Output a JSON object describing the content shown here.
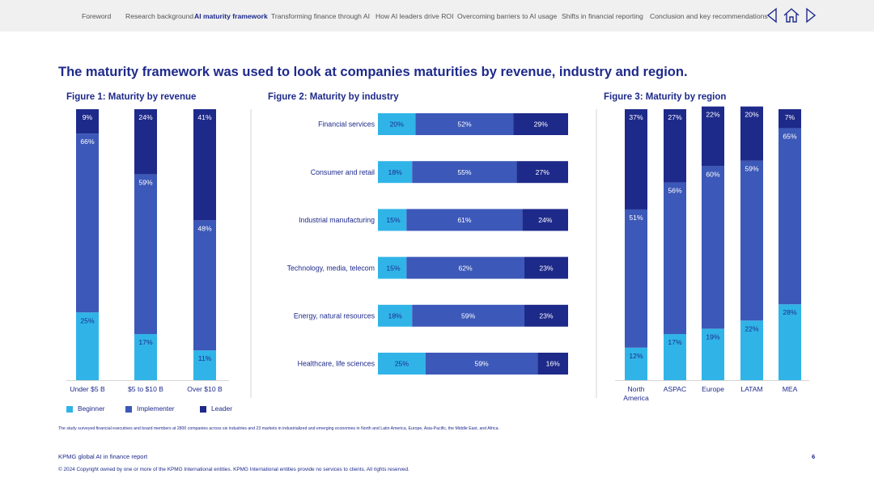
{
  "nav": {
    "items": [
      {
        "label": "Foreword",
        "active": false
      },
      {
        "label": "Research background",
        "active": false
      },
      {
        "label": "AI maturity framework",
        "active": true
      },
      {
        "label": "Transforming finance through AI",
        "active": false
      },
      {
        "label": "How AI leaders drive ROI",
        "active": false
      },
      {
        "label": "Overcoming barriers to AI usage",
        "active": false
      },
      {
        "label": "Shifts in financial reporting",
        "active": false
      },
      {
        "label": "Conclusion and key recommendations",
        "active": false
      }
    ]
  },
  "headline": "The maturity framework was used to look at companies maturities by revenue, industry and region.",
  "colors": {
    "beginner": "#30b4e8",
    "implementer": "#3c58b8",
    "leader": "#1e2a8a",
    "text": "#1e2a8a",
    "divider": "#d6d6d6"
  },
  "chart_data": [
    {
      "type": "bar",
      "stacked": true,
      "orientation": "vertical",
      "title": "Figure 1: Maturity by revenue",
      "categories": [
        "Under $5 B",
        "$5 to $10 B",
        "Over $10 B"
      ],
      "series": [
        {
          "name": "Beginner",
          "values": [
            25,
            17,
            11
          ]
        },
        {
          "name": "Implementer",
          "values": [
            66,
            59,
            48
          ]
        },
        {
          "name": "Leader",
          "values": [
            9,
            24,
            41
          ]
        }
      ],
      "ylim": [
        0,
        100
      ]
    },
    {
      "type": "bar",
      "stacked": true,
      "orientation": "horizontal",
      "title": "Figure 2: Maturity by industry",
      "categories": [
        "Financial services",
        "Consumer and retail",
        "Industrial manufacturing",
        "Technology, media, telecom",
        "Energy, natural resources",
        "Healthcare, life sciences"
      ],
      "series": [
        {
          "name": "Beginner",
          "values": [
            20,
            18,
            15,
            15,
            18,
            25
          ]
        },
        {
          "name": "Implementer",
          "values": [
            52,
            55,
            61,
            62,
            59,
            59
          ]
        },
        {
          "name": "Leader",
          "values": [
            29,
            27,
            24,
            23,
            23,
            16
          ]
        }
      ],
      "xlim": [
        0,
        100
      ]
    },
    {
      "type": "bar",
      "stacked": true,
      "orientation": "vertical",
      "title": "Figure 3: Maturity by region",
      "categories": [
        "North America",
        "ASPAC",
        "Europe",
        "LATAM",
        "MEA"
      ],
      "series": [
        {
          "name": "Beginner",
          "values": [
            12,
            17,
            19,
            22,
            28
          ]
        },
        {
          "name": "Implementer",
          "values": [
            51,
            56,
            60,
            59,
            65
          ]
        },
        {
          "name": "Leader",
          "values": [
            37,
            27,
            22,
            20,
            7
          ]
        }
      ],
      "ylim": [
        0,
        100
      ]
    }
  ],
  "legend": [
    "Beginner",
    "Implementer",
    "Leader"
  ],
  "footnote": "The study surveyed financial executives and board members at 2800 companies across six industries and 23 markets in industrialized and emerging economies in North and Latin America, Europe, Asia-Pacific, the Middle East, and Africa.",
  "footer": {
    "title": "KPMG global AI in finance report",
    "page": "6",
    "copyright": "© 2024 Copyright owned by one or more of the KPMG International entities. KPMG International entities provide no services to clients. All rights reserved."
  }
}
